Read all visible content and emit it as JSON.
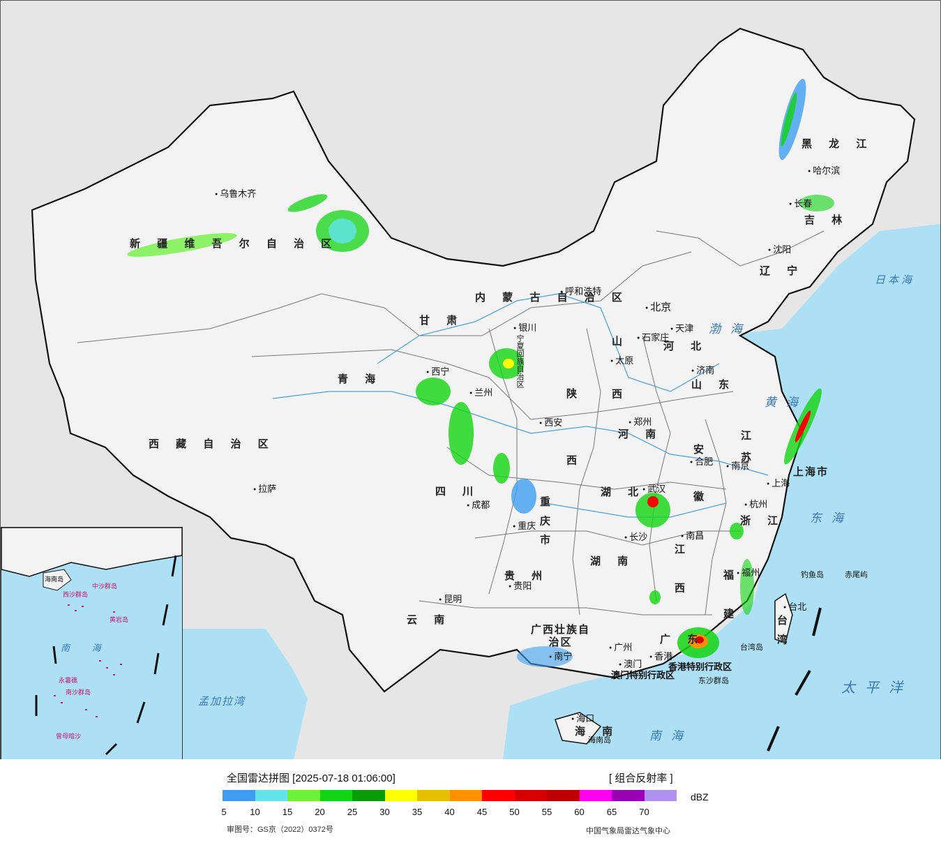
{
  "legend": {
    "title": "全国雷达拼图 [2025-07-18 01:06:00]",
    "product": "[ 组合反射率 ]",
    "unit": "dBZ",
    "ticks": [
      "5",
      "10",
      "15",
      "20",
      "25",
      "30",
      "35",
      "40",
      "45",
      "50",
      "55",
      "60",
      "65",
      "70"
    ],
    "colors": [
      "#3d9ef0",
      "#62e4ec",
      "#6cf23a",
      "#12d412",
      "#099c09",
      "#ffff00",
      "#e6c000",
      "#ff9000",
      "#ff0000",
      "#d40000",
      "#bc0000",
      "#ff00f0",
      "#9a00b4",
      "#ad90f0"
    ],
    "review_number": "审图号：GS京（2022）0372号",
    "issuer": "中国气象局雷达气象中心"
  },
  "map": {
    "land_color": "#f3f3f3",
    "sea_color": "#aee0f5",
    "background_color": "#e6e6e6",
    "provinces": [
      {
        "id": "xinjiang",
        "text": "新 疆 维 吾 尔 自 治 区"
      },
      {
        "id": "xizang",
        "text": "西 藏 自 治 区"
      },
      {
        "id": "qinghai",
        "text": "青   海"
      },
      {
        "id": "gansu",
        "text": "甘   肃"
      },
      {
        "id": "neimenggu",
        "text": "内   蒙   古   自   治   区"
      },
      {
        "id": "heilongjiang",
        "text": "黑 龙 江"
      },
      {
        "id": "jilin",
        "text": "吉 林"
      },
      {
        "id": "liaoning",
        "text": "辽 宁"
      },
      {
        "id": "hebei",
        "text": "河 北"
      },
      {
        "id": "shanxi",
        "text": "山 西"
      },
      {
        "id": "shandong",
        "text": "山 东"
      },
      {
        "id": "henan",
        "text": "河 南"
      },
      {
        "id": "shaanxi",
        "text": "陕 西"
      },
      {
        "id": "sichuan",
        "text": "四 川"
      },
      {
        "id": "chongqing",
        "text": "重 庆 市"
      },
      {
        "id": "hubei",
        "text": "湖 北"
      },
      {
        "id": "hunan",
        "text": "湖 南"
      },
      {
        "id": "jiangxi",
        "text": "江 西"
      },
      {
        "id": "anhui",
        "text": "安 徽"
      },
      {
        "id": "jiangsu",
        "text": "江 苏"
      },
      {
        "id": "shanghai",
        "text": "上海市"
      },
      {
        "id": "zhejiang",
        "text": "浙 江"
      },
      {
        "id": "fujian",
        "text": "福 建"
      },
      {
        "id": "guangdong",
        "text": "广 东"
      },
      {
        "id": "guangxi",
        "text": "广西壮族自治区"
      },
      {
        "id": "guizhou",
        "text": "贵 州"
      },
      {
        "id": "yunnan",
        "text": "云 南"
      },
      {
        "id": "hainan",
        "text": "海 南"
      },
      {
        "id": "taiwan",
        "text": "台 湾"
      },
      {
        "id": "ningxia",
        "text": "宁夏回族自治区"
      },
      {
        "id": "hk",
        "text": "香港特别行政区"
      },
      {
        "id": "macao",
        "text": "澳门特别行政区"
      }
    ],
    "cities": [
      "乌鲁木齐",
      "拉萨",
      "西宁",
      "兰州",
      "银川",
      "呼和浩特",
      "北京",
      "天津",
      "石家庄",
      "太原",
      "济南",
      "郑州",
      "西安",
      "合肥",
      "南京",
      "上海",
      "杭州",
      "武汉",
      "成都",
      "重庆",
      "长沙",
      "南昌",
      "福州",
      "贵阳",
      "昆明",
      "南宁",
      "广州",
      "澳门",
      "香港",
      "海口",
      "台北",
      "沈阳",
      "长春",
      "哈尔滨"
    ],
    "seas": [
      "日本海",
      "渤海",
      "黄海",
      "东海",
      "太平洋",
      "南海",
      "孟加拉湾"
    ],
    "islands": [
      "钓鱼岛",
      "赤尾屿",
      "台湾岛",
      "东沙群岛",
      "海南岛"
    ],
    "inset": {
      "labels": [
        "南 海",
        "中沙群岛",
        "西沙群岛",
        "南沙群岛",
        "黄岩岛",
        "海南岛",
        "曾母暗沙",
        "永暑礁"
      ]
    }
  }
}
